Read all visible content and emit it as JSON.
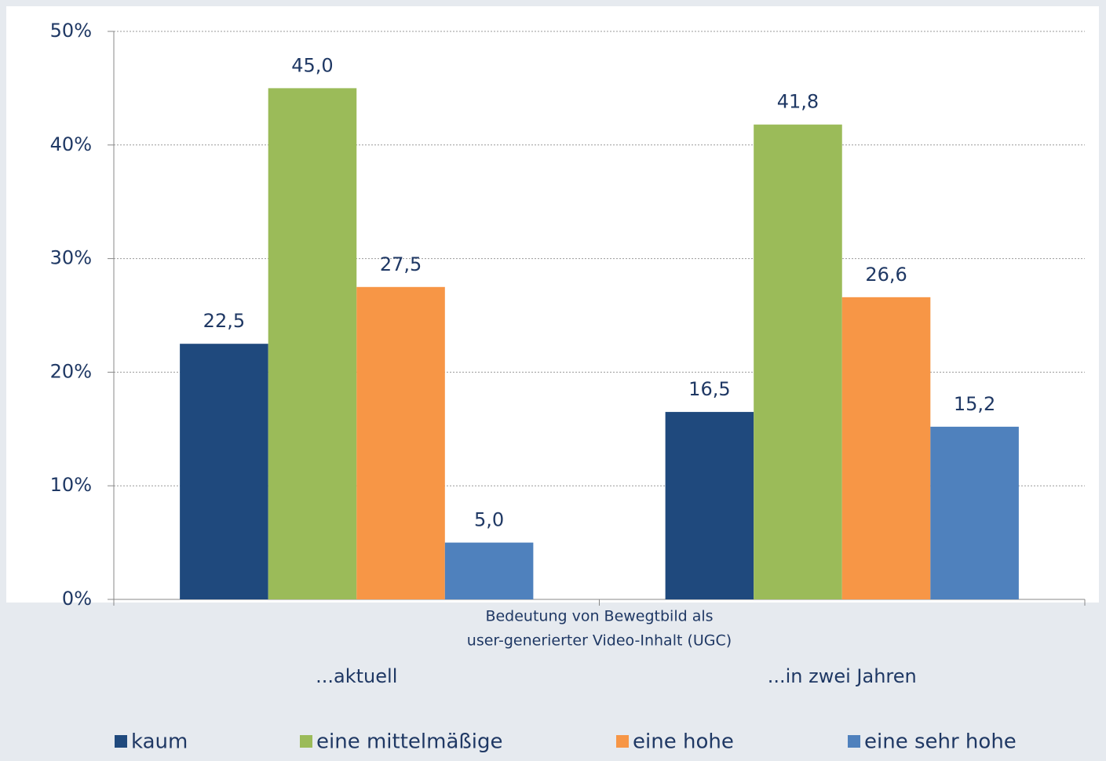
{
  "chart_data": {
    "type": "bar",
    "categories": [
      "...aktuell",
      "...in zwei Jahren"
    ],
    "x_label": [
      "Bedeutung von Bewegtbild als",
      "user-generierter Video-Inhalt (UGC)"
    ],
    "series": [
      {
        "name": "kaum",
        "color": "#1f497d",
        "values": [
          22.5,
          16.5
        ],
        "value_labels": [
          "22,5",
          "16,5"
        ]
      },
      {
        "name": "eine mittelmäßige",
        "color": "#9bbb59",
        "values": [
          45.0,
          41.8
        ],
        "value_labels": [
          "45,0",
          "41,8"
        ]
      },
      {
        "name": "eine hohe",
        "color": "#f79646",
        "values": [
          27.5,
          26.6
        ],
        "value_labels": [
          "27,5",
          "26,6"
        ]
      },
      {
        "name": "eine sehr hohe",
        "color": "#4f81bd",
        "values": [
          5.0,
          15.2
        ],
        "value_labels": [
          "5,0",
          "15,2"
        ]
      }
    ],
    "ylim": [
      0,
      50
    ],
    "yticks": [
      {
        "value": 0,
        "label": "0%"
      },
      {
        "value": 10,
        "label": "10%"
      },
      {
        "value": 20,
        "label": "20%"
      },
      {
        "value": 30,
        "label": "30%"
      },
      {
        "value": 40,
        "label": "40%"
      },
      {
        "value": 50,
        "label": "50%"
      }
    ],
    "grid": true,
    "legend": "bottom"
  }
}
